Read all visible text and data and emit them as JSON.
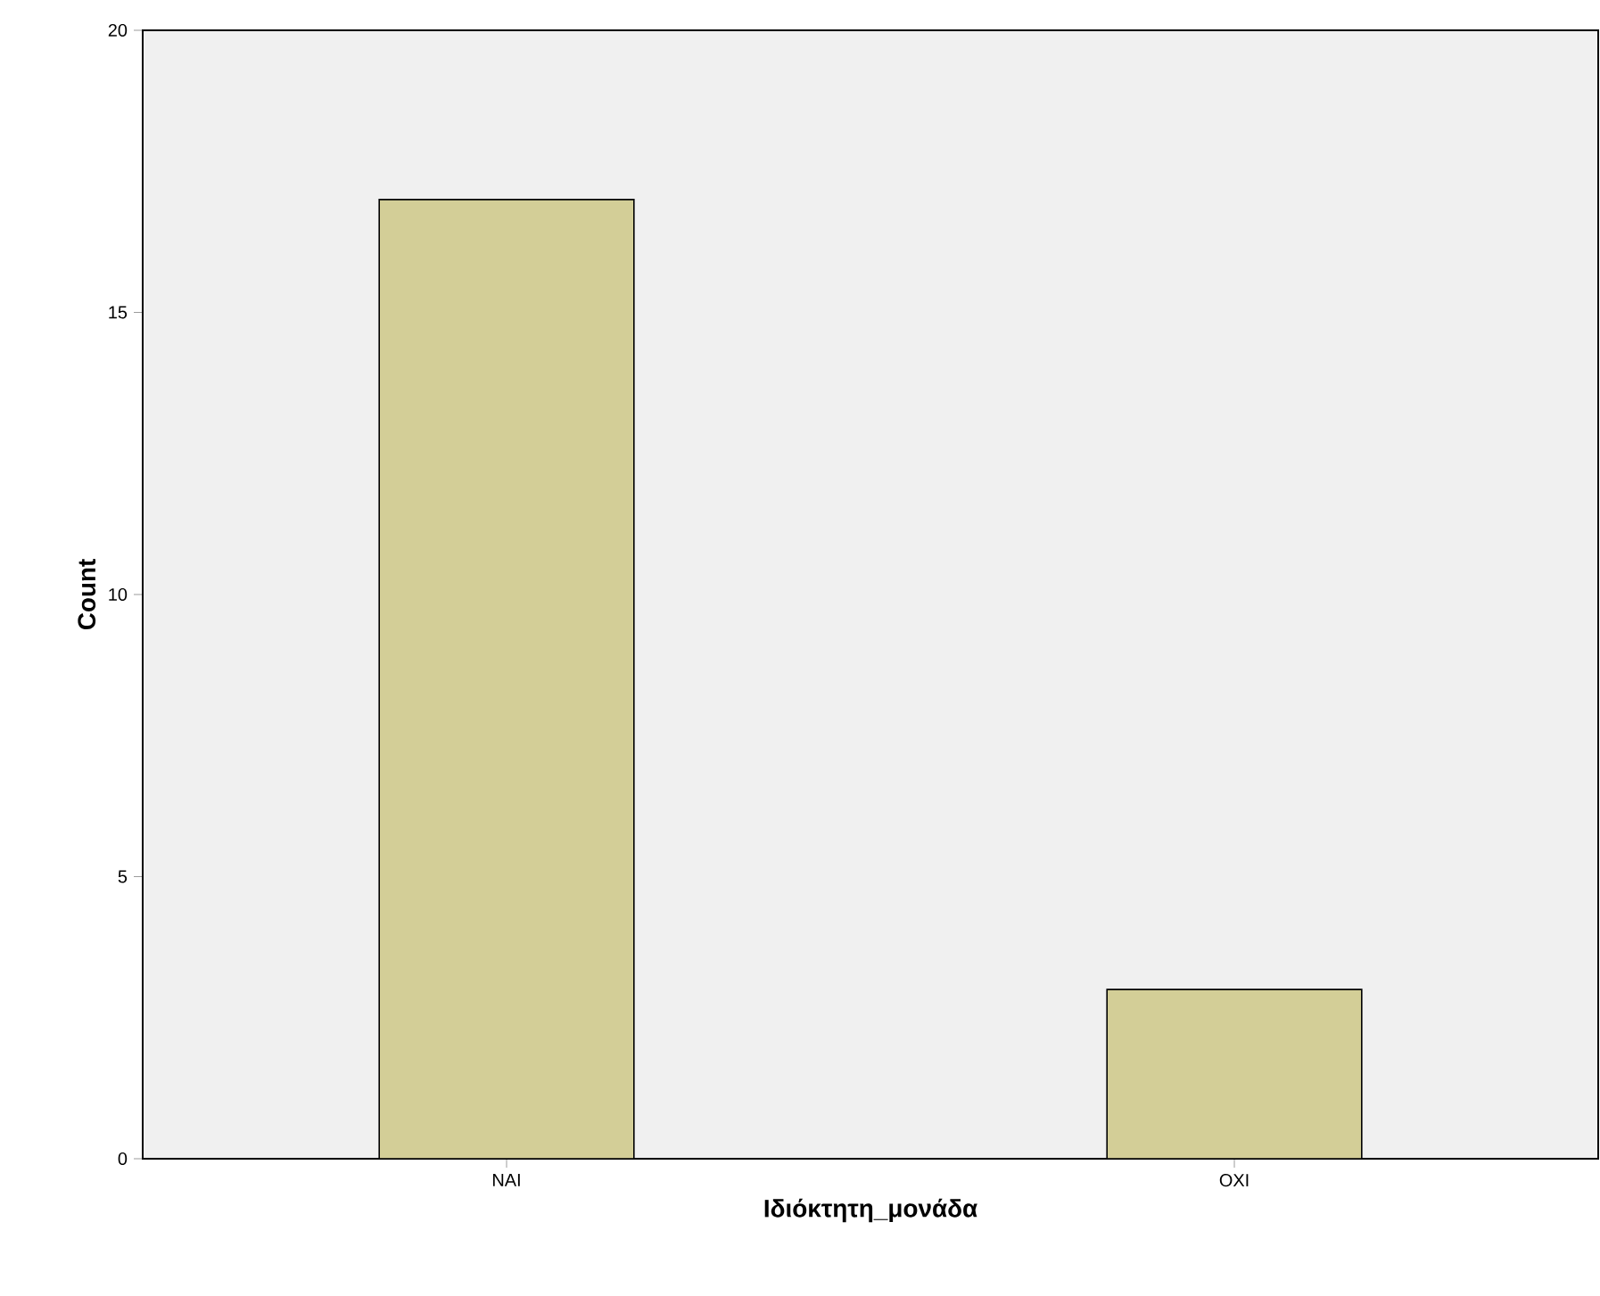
{
  "chart_data": {
    "type": "bar",
    "xlabel": "Ιδιόκτητη_μονάδα",
    "ylabel": "Count",
    "categories": [
      "ΝΑΙ",
      "ΟΧΙ"
    ],
    "values": [
      17,
      3
    ],
    "color": "#d3ce97",
    "ylim": [
      0,
      20
    ],
    "yticks": [
      0,
      5,
      10,
      15,
      20
    ]
  }
}
